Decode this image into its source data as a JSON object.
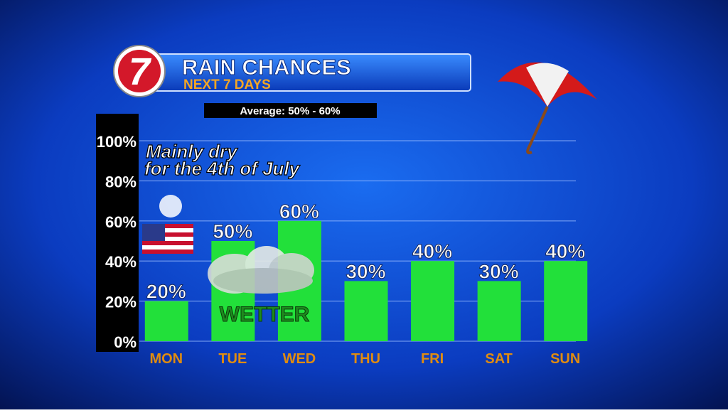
{
  "chart_data": {
    "type": "bar",
    "logo": "7",
    "title": "RAIN CHANCES",
    "subtitle": "NEXT 7 DAYS",
    "annotations": [
      "Average: 50% - 60%",
      "Mainly dry",
      "for the 4th of July",
      "WETTER"
    ],
    "categories": [
      "MON",
      "TUE",
      "WED",
      "THU",
      "FRI",
      "SAT",
      "SUN"
    ],
    "values": [
      20,
      50,
      60,
      30,
      40,
      30,
      40
    ],
    "value_labels": [
      "20%",
      "50%",
      "60%",
      "30%",
      "40%",
      "30%",
      "40%"
    ],
    "color": "#22e03a",
    "ylim": [
      0,
      100
    ],
    "yticks": [
      {
        "value": 0,
        "label": "0%"
      },
      {
        "value": 20,
        "label": "20%"
      },
      {
        "value": 40,
        "label": "40%"
      },
      {
        "value": 60,
        "label": "60%"
      },
      {
        "value": 80,
        "label": "80%"
      },
      {
        "value": 100,
        "label": "100%"
      }
    ],
    "grid": true
  }
}
